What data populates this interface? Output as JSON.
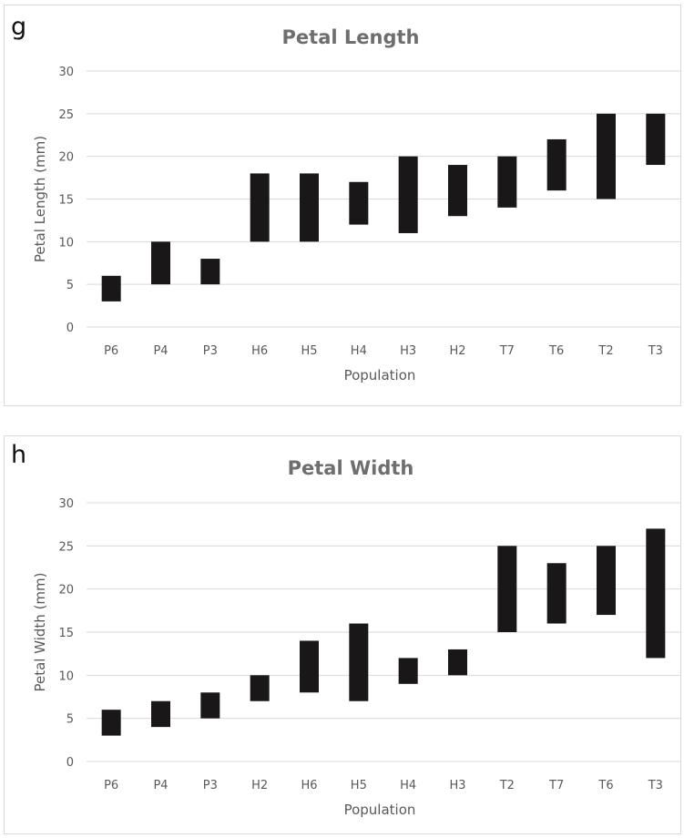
{
  "panels": [
    {
      "letter": "g"
    },
    {
      "letter": "h"
    }
  ],
  "chart_data": [
    {
      "type": "bar",
      "subtype": "floating-range",
      "title": "Petal Length",
      "xlabel": "Population",
      "ylabel": "Petal Length (mm)",
      "ylim": [
        0,
        30
      ],
      "yticks": [
        0,
        5,
        10,
        15,
        20,
        25,
        30
      ],
      "grid": true,
      "color": "#1a1718",
      "categories": [
        "P6",
        "P4",
        "P3",
        "H6",
        "H5",
        "H4",
        "H3",
        "H2",
        "T7",
        "T6",
        "T2",
        "T3"
      ],
      "ranges": [
        [
          3,
          6
        ],
        [
          5,
          10
        ],
        [
          5,
          8
        ],
        [
          10,
          18
        ],
        [
          10,
          18
        ],
        [
          12,
          17
        ],
        [
          11,
          20
        ],
        [
          13,
          19
        ],
        [
          14,
          20
        ],
        [
          16,
          22
        ],
        [
          15,
          25
        ],
        [
          19,
          25
        ]
      ]
    },
    {
      "type": "bar",
      "subtype": "floating-range",
      "title": "Petal Width",
      "xlabel": "Population",
      "ylabel": "Petal Width (mm)",
      "ylim": [
        0,
        30
      ],
      "yticks": [
        0,
        5,
        10,
        15,
        20,
        25,
        30
      ],
      "grid": true,
      "color": "#1a1718",
      "categories": [
        "P6",
        "P4",
        "P3",
        "H2",
        "H6",
        "H5",
        "H4",
        "H3",
        "T2",
        "T7",
        "T6",
        "T3"
      ],
      "ranges": [
        [
          3,
          6
        ],
        [
          4,
          7
        ],
        [
          5,
          8
        ],
        [
          7,
          10
        ],
        [
          8,
          14
        ],
        [
          7,
          16
        ],
        [
          9,
          12
        ],
        [
          10,
          13
        ],
        [
          15,
          25
        ],
        [
          16,
          23
        ],
        [
          17,
          25
        ],
        [
          12,
          27
        ]
      ]
    }
  ]
}
